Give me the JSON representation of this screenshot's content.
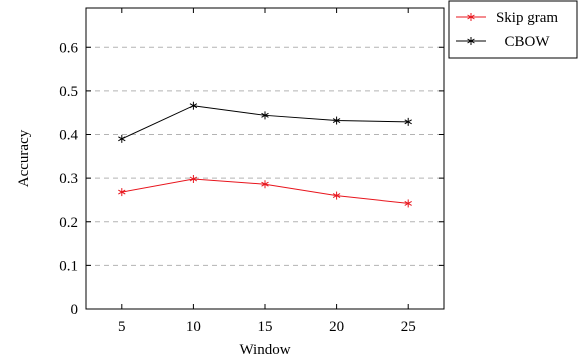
{
  "chart_data": {
    "type": "line",
    "title": "",
    "xlabel": "Window",
    "ylabel": "Accuracy",
    "x": [
      5,
      10,
      15,
      20,
      25
    ],
    "x_ticks": [
      "5",
      "10",
      "15",
      "20",
      "25"
    ],
    "y_ticks": [
      "0",
      "0.1",
      "0.2",
      "0.3",
      "0.4",
      "0.5",
      "0.6"
    ],
    "xlim": [
      2.5,
      27.5
    ],
    "ylim": [
      0,
      0.69
    ],
    "grid": "horizontal dashed",
    "legend_position": "outside top-right",
    "marker": "asterisk",
    "series": [
      {
        "name": "Skip gram",
        "color": "#e8141c",
        "values": [
          0.268,
          0.298,
          0.286,
          0.26,
          0.242
        ]
      },
      {
        "name": "CBOW",
        "color": "#000000",
        "values": [
          0.39,
          0.466,
          0.444,
          0.432,
          0.429
        ]
      }
    ]
  }
}
